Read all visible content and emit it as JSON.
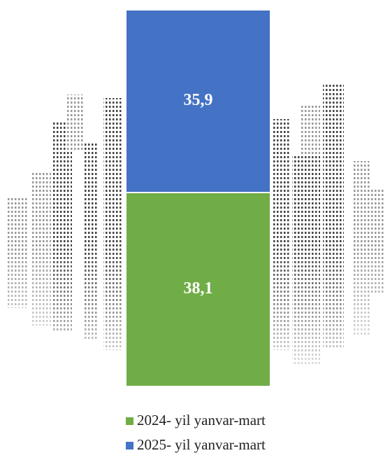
{
  "chart_data": {
    "type": "stacked-bar",
    "categories": [
      null
    ],
    "series": [
      {
        "name": "2024- yil yanvar-mart",
        "color": "#70ad47",
        "values": [
          38.1
        ],
        "value_labels": [
          "38,1"
        ]
      },
      {
        "name": "2025- yil yanvar-mart",
        "color": "#4472c4",
        "values": [
          35.9
        ],
        "value_labels": [
          "35,9"
        ]
      }
    ]
  }
}
